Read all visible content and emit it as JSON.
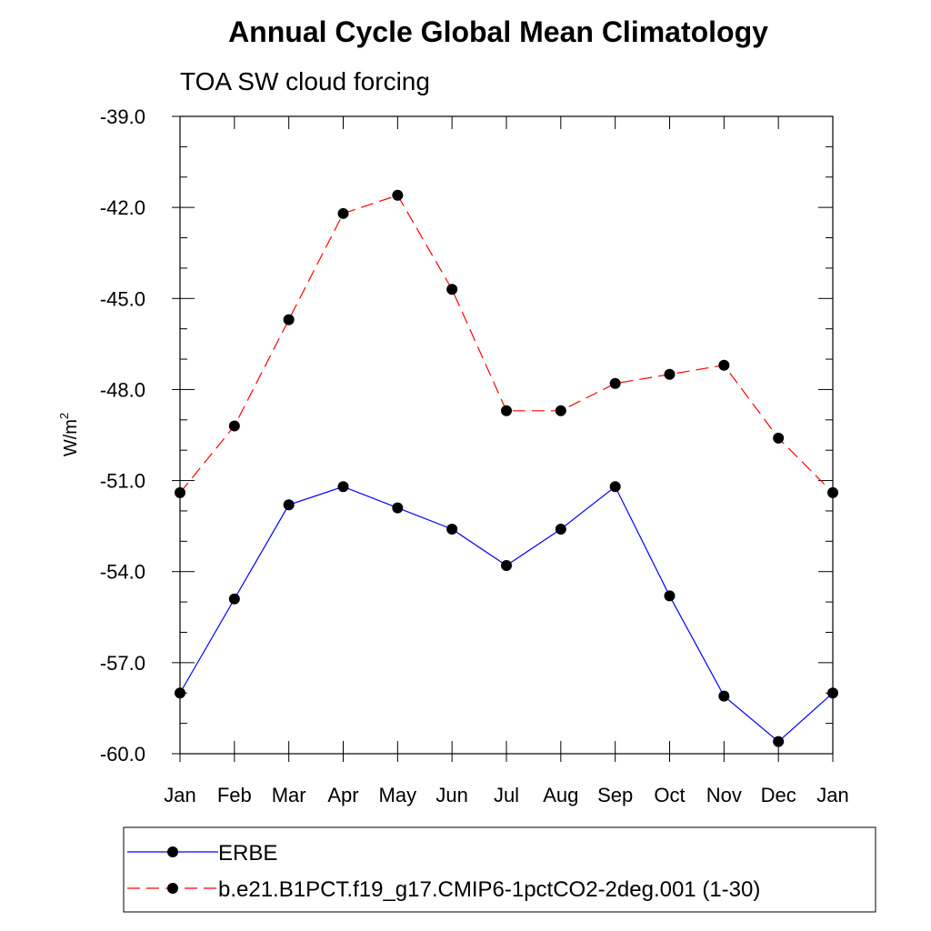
{
  "chart_data": {
    "type": "line",
    "title": "Annual Cycle Global Mean Climatology",
    "subtitle": "TOA SW cloud forcing",
    "ylabel_base": "W/m",
    "ylabel_sup": "2",
    "categories": [
      "Jan",
      "Feb",
      "Mar",
      "Apr",
      "May",
      "Jun",
      "Jul",
      "Aug",
      "Sep",
      "Oct",
      "Nov",
      "Dec",
      "Jan"
    ],
    "yticks": [
      "-39.0",
      "-42.0",
      "-45.0",
      "-48.0",
      "-51.0",
      "-54.0",
      "-57.0",
      "-60.0"
    ],
    "ylim": [
      -60,
      -39
    ],
    "series": [
      {
        "name": "ERBE",
        "color": "#0000ff",
        "dash": "solid",
        "values": [
          -58.0,
          -54.9,
          -51.8,
          -51.2,
          -51.9,
          -52.6,
          -53.8,
          -52.6,
          -51.2,
          -54.8,
          -58.1,
          -59.6,
          -58.0
        ]
      },
      {
        "name": "b.e21.B1PCT.f19_g17.CMIP6-1pctCO2-2deg.001 (1-30)",
        "color": "#ff0000",
        "dash": "dashed",
        "values": [
          -51.4,
          -49.2,
          -45.7,
          -42.2,
          -41.6,
          -44.7,
          -48.7,
          -48.7,
          -47.8,
          -47.5,
          -47.2,
          -49.6,
          -51.4
        ]
      }
    ],
    "legend_position": "bottom",
    "grid": false
  }
}
